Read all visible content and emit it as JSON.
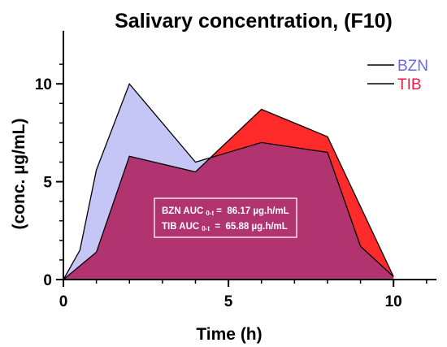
{
  "chart_data": {
    "type": "area",
    "title": "Salivary concentration, (F10)",
    "xlabel": "Time (h)",
    "ylabel": "(conc. µg/mL)",
    "xlim": [
      0,
      11.3
    ],
    "ylim": [
      0,
      12
    ],
    "xticks": [
      0,
      5,
      10
    ],
    "yticks": [
      0,
      5,
      10
    ],
    "legend_position": "top-right",
    "series": [
      {
        "name": "BZN",
        "color": "#6a6ae6",
        "fill": "#c6c6f6",
        "x": [
          0,
          0.5,
          1,
          2,
          4,
          6,
          8,
          9,
          10
        ],
        "y": [
          0,
          1.5,
          5.6,
          10,
          6.0,
          7.0,
          6.5,
          1.7,
          0.15
        ]
      },
      {
        "name": "TIB",
        "color": "#ee1c4b",
        "fill": "#ff2a2a",
        "x": [
          0,
          1,
          2,
          4,
          6,
          8,
          10
        ],
        "y": [
          0,
          1.4,
          6.3,
          5.5,
          8.7,
          7.3,
          0.15
        ]
      }
    ],
    "overlap_fill": "#b13370",
    "annotation": {
      "line1_prefix": "BZN AUC",
      "line1_sub": "0-t",
      "line1_suffix": " =  86.17 µg.h/mL",
      "line2_prefix": "TIB AUC",
      "line2_sub": "0-t",
      "line2_suffix": "  =  65.88 µg.h/mL"
    }
  }
}
